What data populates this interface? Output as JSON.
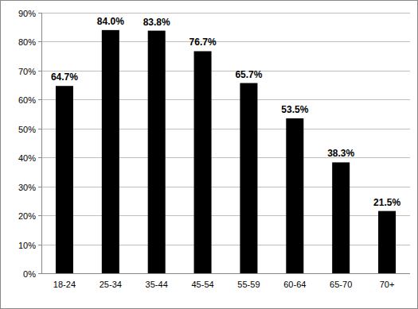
{
  "chart_data": {
    "type": "bar",
    "categories": [
      "18-24",
      "25-34",
      "35-44",
      "45-54",
      "55-59",
      "60-64",
      "65-70",
      "70+"
    ],
    "values": [
      64.7,
      84.0,
      83.8,
      76.7,
      65.7,
      53.5,
      38.3,
      21.5
    ],
    "value_labels": [
      "64.7%",
      "84.0%",
      "83.8%",
      "76.7%",
      "65.7%",
      "53.5%",
      "38.3%",
      "21.5%"
    ],
    "color": "#000000",
    "ylim": [
      0,
      90
    ],
    "yticks": [
      {
        "value": 0,
        "label": "0%"
      },
      {
        "value": 10,
        "label": "10%"
      },
      {
        "value": 20,
        "label": "20%"
      },
      {
        "value": 30,
        "label": "30%"
      },
      {
        "value": 40,
        "label": "40%"
      },
      {
        "value": 50,
        "label": "50%"
      },
      {
        "value": 60,
        "label": "60%"
      },
      {
        "value": 70,
        "label": "70%"
      },
      {
        "value": 80,
        "label": "80%"
      },
      {
        "value": 90,
        "label": "90%"
      }
    ],
    "grid": true,
    "data_labels": true
  }
}
